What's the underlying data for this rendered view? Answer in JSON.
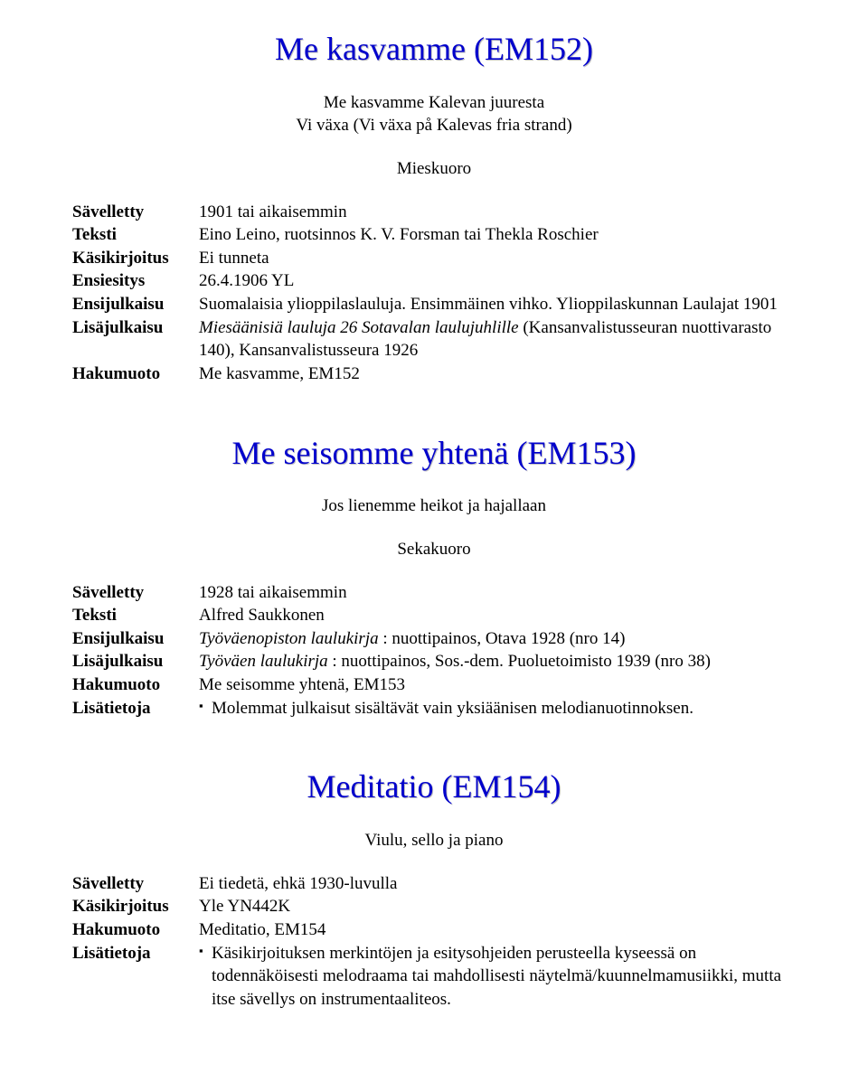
{
  "labels": {
    "savelletty": "Sävelletty",
    "teksti": "Teksti",
    "kasikirjoitus": "Käsikirjoitus",
    "ensiesitys": "Ensiesitys",
    "ensijulkaisu": "Ensijulkaisu",
    "lisajulkaisu": "Lisäjulkaisu",
    "hakumuoto": "Hakumuoto",
    "lisatietoja": "Lisätietoja"
  },
  "entry1": {
    "title": "Me kasvamme (EM152)",
    "subtitle1": "Me kasvamme Kalevan juuresta",
    "subtitle2": "Vi växa (Vi växa på Kalevas fria strand)",
    "ensemble": "Mieskuoro",
    "savelletty": "1901 tai aikaisemmin",
    "teksti": "Eino Leino, ruotsinnos K. V. Forsman tai Thekla Roschier",
    "kasikirjoitus": "Ei tunneta",
    "ensiesitys": "26.4.1906 YL",
    "ensijulkaisu": "Suomalaisia ylioppilaslauluja. Ensimmäinen vihko. Ylioppilaskunnan Laulajat 1901",
    "lisajulkaisu_italic": "Miesäänisiä lauluja 26 Sotavalan laulujuhlille",
    "lisajulkaisu_rest": " (Kansanvalistusseuran nuottivarasto 140), Kansanvalistusseura 1926",
    "hakumuoto": "Me kasvamme, EM152"
  },
  "entry2": {
    "title": "Me seisomme yhtenä (EM153)",
    "subtitle1": "Jos lienemme heikot ja hajallaan",
    "ensemble": "Sekakuoro",
    "savelletty": "1928 tai aikaisemmin",
    "teksti": "Alfred Saukkonen",
    "ensijulkaisu_italic": "Työväenopiston laulukirja",
    "ensijulkaisu_rest": " : nuottipainos, Otava 1928 (nro 14)",
    "lisajulkaisu_italic": "Työväen laulukirja",
    "lisajulkaisu_rest": " : nuottipainos, Sos.-dem. Puoluetoimisto 1939 (nro 38)",
    "hakumuoto": "Me seisomme yhtenä, EM153",
    "lisatietoja": "Molemmat julkaisut sisältävät vain yksiäänisen melodianuotinnoksen."
  },
  "entry3": {
    "title": "Meditatio (EM154)",
    "ensemble": "Viulu, sello ja piano",
    "savelletty": "Ei tiedetä, ehkä 1930-luvulla",
    "kasikirjoitus": "Yle YN442K",
    "hakumuoto": "Meditatio, EM154",
    "lisatietoja": "Käsikirjoituksen merkintöjen ja esitysohjeiden perusteella kyseessä on todennäköisesti melodraama tai mahdollisesti näytelmä/kuunnelmamusiikki, mutta itse sävellys on instrumentaaliteos."
  }
}
